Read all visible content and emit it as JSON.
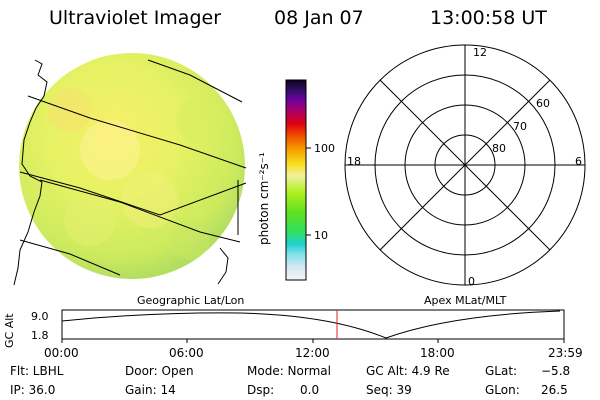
{
  "header": {
    "instrument": "Ultraviolet Imager",
    "date": "08 Jan 07",
    "time": "13:00:58 UT"
  },
  "colorbar": {
    "unit_label": "photon cm⁻²s⁻¹",
    "ticks": [
      "100",
      "10"
    ]
  },
  "polar_plot": {
    "mlt_labels": {
      "top": "12",
      "left": "18",
      "right": "6",
      "bottom": "0"
    },
    "lat_labels": [
      "60",
      "70",
      "80"
    ],
    "caption": "Apex MLat/MLT"
  },
  "image_panel": {
    "caption": "Geographic Lat/Lon"
  },
  "timeline": {
    "ylabel": "GC Alt",
    "y_ticks": [
      "9.0",
      "1.8"
    ],
    "x_ticks": [
      "00:00",
      "06:00",
      "12:00",
      "18:00",
      "23:59"
    ],
    "current_marker": "13:00:58"
  },
  "status": {
    "flt": "Flt: LBHL",
    "ip": "IP: 36.0",
    "door": "Door: Open",
    "gain": "Gain: 14",
    "mode": "Mode: Normal",
    "dsp_label": "Dsp:",
    "dsp_value": "0.0",
    "gc_alt": "GC Alt: 4.9 Re",
    "seq": "Seq: 39",
    "glat_label": "GLat:",
    "glat_value": "−5.8",
    "glon_label": "GLon:",
    "glon_value": "26.5"
  },
  "colors": {
    "disk_main": "#e0f060",
    "disk_bright": "#f6f070",
    "disk_edge": "#b8e060",
    "grid_line": "#000000",
    "marker": "#e02020"
  }
}
